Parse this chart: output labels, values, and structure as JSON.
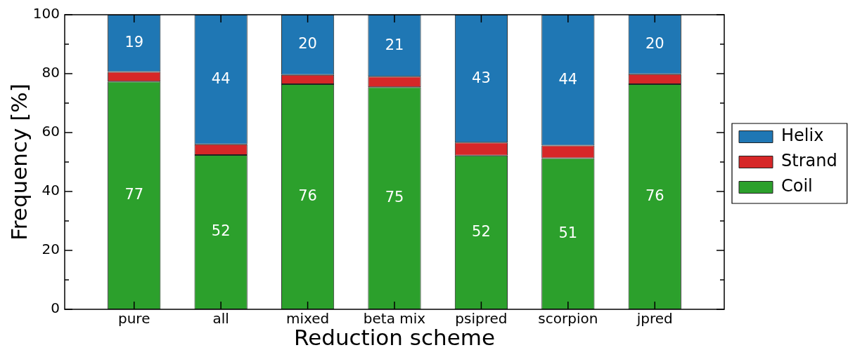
{
  "chart_data": {
    "type": "bar",
    "stacked": true,
    "xlabel": "Reduction scheme",
    "ylabel": "Frequency [%]",
    "categories": [
      "pure",
      "all",
      "mixed",
      "beta mix",
      "psipred",
      "scorpion",
      "jpred"
    ],
    "series": [
      {
        "name": "Coil",
        "color": "#2ca02c",
        "values": [
          77.3,
          52.4,
          76.4,
          75.4,
          52.2,
          51.3,
          76.4
        ],
        "value_labels": [
          "77",
          "52",
          "76",
          "75",
          "52",
          "51",
          "76"
        ]
      },
      {
        "name": "Strand",
        "color": "#d62728",
        "values": [
          3.3,
          3.6,
          3.2,
          3.6,
          4.4,
          4.3,
          3.4
        ]
      },
      {
        "name": "Helix",
        "color": "#1f77b4",
        "values": [
          19.4,
          44.0,
          20.4,
          21.0,
          43.4,
          44.4,
          20.2
        ],
        "value_labels": [
          "19",
          "44",
          "20",
          "21",
          "43",
          "44",
          "20"
        ]
      }
    ],
    "ylim": [
      0,
      100
    ],
    "yticks": [
      0,
      {
        "value": 10,
        "label": null
      },
      20,
      {
        "value": 30,
        "label": null
      },
      40,
      {
        "value": 50,
        "label": null
      },
      60,
      {
        "value": 70,
        "label": null
      },
      80,
      {
        "value": 90,
        "label": null
      },
      100
    ],
    "legend": "right"
  }
}
